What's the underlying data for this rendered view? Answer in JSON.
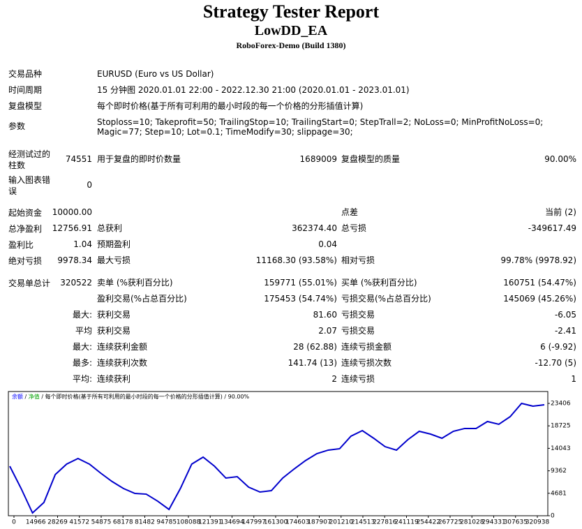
{
  "header": {
    "title": "Strategy Tester Report",
    "ea": "LowDD_EA",
    "server": "RoboForex-Demo (Build 1380)"
  },
  "info": [
    {
      "label": "交易品种",
      "value": "EURUSD (Euro vs US Dollar)"
    },
    {
      "label": "时间周期",
      "value": "15 分钟图 2020.01.01 22:00 - 2022.12.30 21:00 (2020.01.01 - 2023.01.01)"
    },
    {
      "label": "复盘模型",
      "value": "每个即时价格(基于所有可利用的最小时段的每一个价格的分形插值计算)"
    },
    {
      "label": "参数",
      "value": "Stoploss=10; Takeprofit=50; TrailingStop=10; TrailingStart=0; StepTrall=2; NoLoss=0; MinProfitNoLoss=0; Magic=77; Step=10; Lot=0.1; TimeModify=30; slippage=30;"
    }
  ],
  "stats": [
    {
      "l1": "经测试过的柱数",
      "v1": "74551",
      "l2": "用于复盘的即时价数量",
      "v2": "1689009",
      "l3": "复盘模型的质量",
      "v3": "90.00%"
    },
    {
      "l1": "输入图表错误",
      "v1": "0"
    },
    {
      "l1": "起始资金",
      "v1": "10000.00",
      "l3": "点差",
      "v3": "当前 (2)"
    },
    {
      "l1": "总净盈利",
      "v1": "12756.91",
      "l2": "总获利",
      "v2": "362374.40",
      "l3": "总亏损",
      "v3": "-349617.49"
    },
    {
      "l1": "盈利比",
      "v1": "1.04",
      "l2": "预期盈利",
      "v2": "0.04"
    },
    {
      "l1": "绝对亏损",
      "v1": "9978.34",
      "l2": "最大亏损",
      "v2": "11168.30 (93.58%)",
      "l3": "相对亏损",
      "v3": "99.78% (9978.92)"
    },
    {
      "l1": "交易单总计",
      "v1": "320522",
      "l2": "卖单 (%获利百分比)",
      "v2": "159771 (55.01%)",
      "l3": "买单 (%获利百分比)",
      "v3": "160751 (54.47%)"
    },
    {
      "l2": "盈利交易(%占总百分比)",
      "v2": "175453 (54.74%)",
      "l3": "亏损交易(%占总百分比)",
      "v3": "145069 (45.26%)"
    },
    {
      "v1": "最大:",
      "l2": "获利交易",
      "v2": "81.60",
      "l3": "亏损交易",
      "v3": "-6.05"
    },
    {
      "v1": "平均",
      "l2": "获利交易",
      "v2": "2.07",
      "l3": "亏损交易",
      "v3": "-2.41"
    },
    {
      "v1": "最大:",
      "l2": "连续获利金额",
      "v2": "28 (62.88)",
      "l3": "连续亏损金额",
      "v3": "6 (-9.92)"
    },
    {
      "v1": "最多:",
      "l2": "连续获利次数",
      "v2": "141.74 (13)",
      "l3": "连续亏损次数",
      "v3": "-12.70 (5)"
    },
    {
      "v1": "平均:",
      "l2": "连续获利",
      "v2": "2",
      "l3": "连续亏损",
      "v3": "1"
    }
  ],
  "chart_data": {
    "type": "line",
    "legend": {
      "balance": "余额",
      "separator": "/",
      "equity": "净值",
      "model": "每个即时价格(基于所有可利用的最小时段的每一个价格的分形插值计算)",
      "quality": "90.00%",
      "balance_color": "#0000ff",
      "equity_color": "#00a000"
    },
    "series": [
      {
        "name": "余额",
        "color": "#0000cc",
        "values": [
          10323,
          5670,
          580,
          2760,
          8580,
          10760,
          11920,
          10760,
          8870,
          7120,
          5670,
          4650,
          4500,
          3050,
          1310,
          5670,
          10760,
          12210,
          10320,
          7850,
          8140,
          5960,
          4940,
          5230,
          7850,
          9740,
          11490,
          12940,
          13670,
          13960,
          16580,
          17740,
          16140,
          14390,
          13670,
          15850,
          17590,
          17010,
          16140,
          17590,
          18180,
          18180,
          19630,
          19050,
          20650,
          23410,
          22830,
          23120
        ]
      }
    ],
    "ylim": [
      0,
      25880
    ],
    "yticks": [
      0,
      4681,
      9362,
      14043,
      18725,
      23406
    ],
    "xticks": [
      0,
      14966,
      28269,
      41572,
      54875,
      68178,
      81482,
      94785,
      108088,
      121391,
      134694,
      147997,
      161300,
      174603,
      187907,
      201210,
      214513,
      227816,
      241119,
      254422,
      267725,
      281028,
      294331,
      307635,
      320938
    ]
  }
}
